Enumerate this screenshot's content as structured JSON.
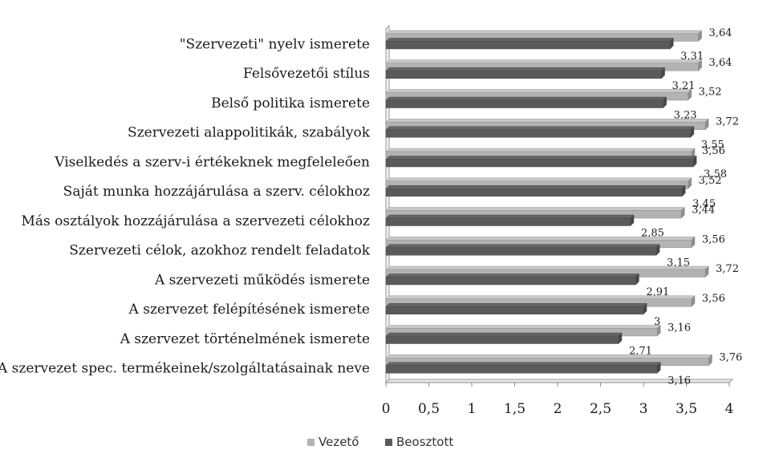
{
  "chart_data": {
    "type": "bar",
    "orientation": "horizontal",
    "categories": [
      "\"Szervezeti\" nyelv ismerete",
      "Felsővezetői stílus",
      "Belső politika ismerete",
      "Szervezeti alappolitikák, szabályok",
      "Viselkedés a szerv-i értékeknek megfeleleően",
      "Saját munka hozzájárulása a szerv. célokhoz",
      "Más osztályok hozzájárulása a szervezeti célokhoz",
      "Szervezeti célok, azokhoz rendelt feladatok",
      "A szervezeti működés ismerete",
      "A szervezet felépítésének ismerete",
      "A szervezet történelmének ismerete",
      "A szervezet spec. termékeinek/szolgáltatásainak neve"
    ],
    "series": [
      {
        "name": "Vezető",
        "color": "#b3b3b3",
        "values": [
          3.64,
          3.64,
          3.52,
          3.72,
          3.56,
          3.52,
          3.44,
          3.56,
          3.72,
          3.56,
          3.16,
          3.76
        ],
        "labels": [
          "3,64",
          "3,64",
          "3,52",
          "3,72",
          "3,56",
          "3,52",
          "3,44",
          "3,56",
          "3,72",
          "3,56",
          "3,16",
          "3,76"
        ]
      },
      {
        "name": "Beosztott",
        "color": "#5a5a5a",
        "values": [
          3.31,
          3.21,
          3.23,
          3.55,
          3.58,
          3.45,
          2.85,
          3.15,
          2.91,
          3.0,
          2.71,
          3.16
        ],
        "labels": [
          "3,31",
          "3,21",
          "3,23",
          "3,55",
          "3,58",
          "3,45",
          "2,85",
          "3,15",
          "2,91",
          "3",
          "2,71",
          "3,16"
        ]
      }
    ],
    "xlim": [
      0,
      4
    ],
    "x_ticks": [
      0,
      0.5,
      1,
      1.5,
      2,
      2.5,
      3,
      3.5,
      4
    ],
    "x_tick_labels": [
      "0",
      "0,5",
      "1",
      "1,5",
      "2",
      "2,5",
      "3",
      "3,5",
      "4"
    ],
    "grid": false,
    "legend_position": "bottom"
  }
}
